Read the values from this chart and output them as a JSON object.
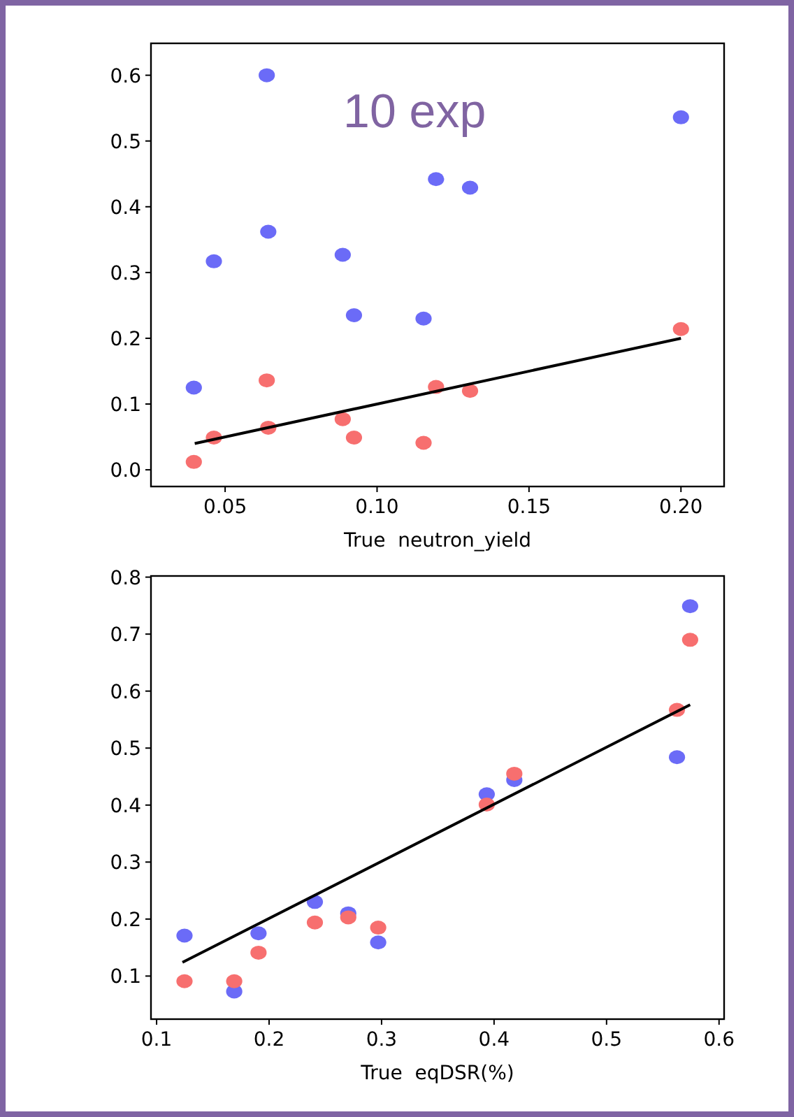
{
  "chart_data": [
    {
      "type": "scatter",
      "xlabel": "True  neutron_yield",
      "annotations": [
        "10 exp"
      ],
      "xlim": [
        0.0256,
        0.2142
      ],
      "ylim": [
        -0.0254,
        0.6485
      ],
      "xticks": [
        0.05,
        {
          "value": 0.1,
          "label": "0.10"
        },
        0.15,
        {
          "value": 0.2,
          "label": "0.20"
        }
      ],
      "yticks": [
        {
          "value": 0,
          "label": "0.0"
        },
        0.1,
        0.2,
        0.3,
        0.4,
        0.5,
        0.6
      ],
      "series": [
        {
          "marker": "circle",
          "color": "#6b6bf7",
          "x": [
            0.0637,
            0.2,
            0.1194,
            0.1306,
            0.0642,
            0.0463,
            0.0887,
            0.0924,
            0.1153,
            0.0397
          ],
          "values": [
            0.6,
            0.536,
            0.442,
            0.429,
            0.362,
            0.317,
            0.327,
            0.235,
            0.23,
            0.125
          ]
        },
        {
          "marker": "circle",
          "color": "#f76f6f",
          "x": [
            0.0397,
            0.0463,
            0.0637,
            0.0642,
            0.0887,
            0.0924,
            0.1153,
            0.1194,
            0.1306,
            0.2
          ],
          "values": [
            0.012,
            0.049,
            0.136,
            0.064,
            0.077,
            0.049,
            0.041,
            0.126,
            0.12,
            0.214
          ]
        },
        {
          "type": "line",
          "color": "#000000",
          "x": [
            0.04,
            0.2
          ],
          "values": [
            0.04,
            0.2
          ]
        }
      ]
    },
    {
      "type": "scatter",
      "xlabel": "True  eqDSR(%)",
      "xlim": [
        0.095,
        0.6045
      ],
      "ylim": [
        0.0244,
        0.802
      ],
      "xticks": [
        0.1,
        0.2,
        0.3,
        0.4,
        0.5,
        0.6
      ],
      "yticks": [
        0.1,
        0.2,
        0.3,
        0.4,
        0.5,
        0.6,
        0.7,
        0.8
      ],
      "series": [
        {
          "marker": "circle",
          "color": "#6b6bf7",
          "x": [
            0.1248,
            0.169,
            0.1906,
            0.2407,
            0.2704,
            0.297,
            0.3935,
            0.418,
            0.5626,
            0.5743
          ],
          "values": [
            0.171,
            0.073,
            0.175,
            0.23,
            0.21,
            0.159,
            0.419,
            0.444,
            0.484,
            0.749
          ]
        },
        {
          "marker": "circle",
          "color": "#f76f6f",
          "x": [
            0.1248,
            0.169,
            0.1906,
            0.2407,
            0.2704,
            0.297,
            0.3935,
            0.418,
            0.5626,
            0.5743
          ],
          "values": [
            0.091,
            0.091,
            0.141,
            0.194,
            0.203,
            0.185,
            0.401,
            0.455,
            0.567,
            0.69
          ]
        },
        {
          "type": "line",
          "color": "#000000",
          "x": [
            0.123,
            0.5743
          ],
          "values": [
            0.124,
            0.576
          ]
        }
      ]
    }
  ]
}
